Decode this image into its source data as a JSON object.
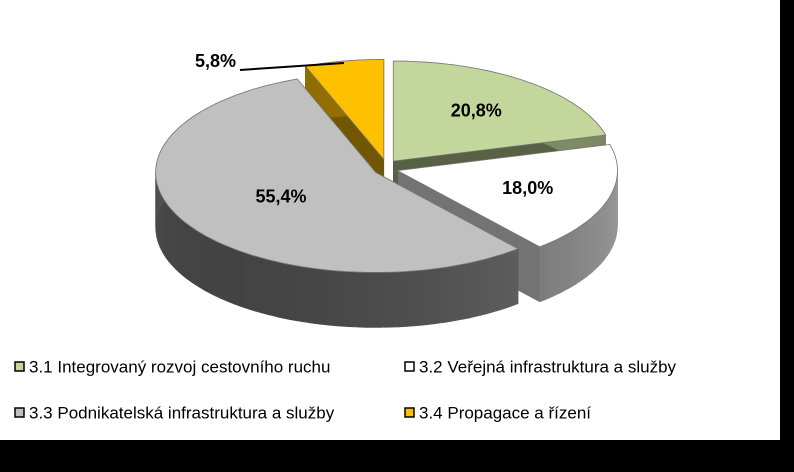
{
  "chart_data": {
    "type": "pie3d",
    "categories": [
      "3.1 Integrovaný rozvoj cestovního ruchu",
      "3.2 Veřejná infrastruktura a služby",
      "3.3 Podnikatelská infrastruktura a služby",
      "3.4 Propagace a řízení"
    ],
    "values": [
      20.8,
      18.0,
      55.4,
      5.8
    ],
    "value_labels": [
      "20,8%",
      "18,0%",
      "55,4%",
      "5,8%"
    ],
    "colors": [
      "#c3d69b",
      "#ffffff",
      "#c0c0c0",
      "#ffc000"
    ],
    "legend": "bottom"
  }
}
